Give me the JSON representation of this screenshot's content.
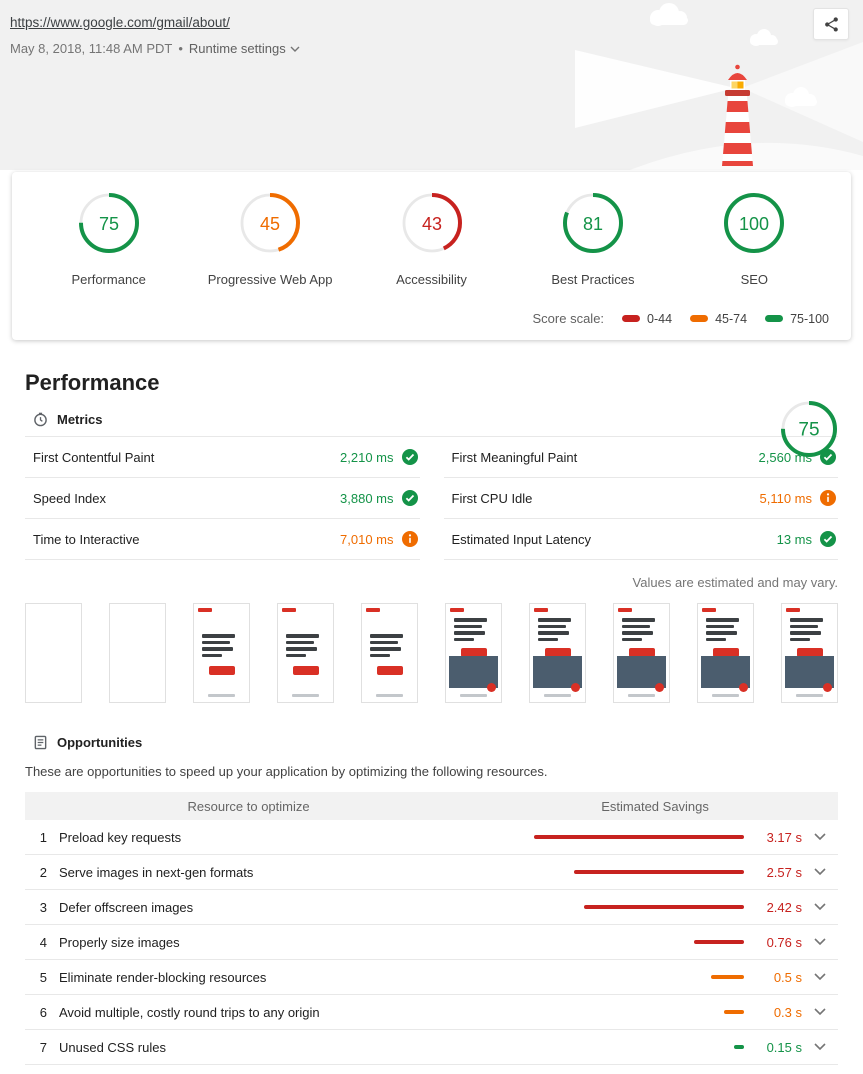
{
  "header": {
    "url": "https://www.google.com/gmail/about/",
    "timestamp": "May 8, 2018, 11:48 AM PDT",
    "separator": "•",
    "runtime_settings_label": "Runtime settings"
  },
  "icons": {
    "share": "share-icon",
    "runtime_chevron": "chevron-down-icon",
    "metrics": "stopwatch-icon",
    "opportunities": "document-icon",
    "pass": "check-circle-icon",
    "average": "info-circle-icon",
    "row_expand": "chevron-down-icon"
  },
  "colors": {
    "green": "#149348",
    "orange": "#ef6c00",
    "red": "#c7221f"
  },
  "scores": [
    {
      "label": "Performance",
      "value": 75,
      "level": "green"
    },
    {
      "label": "Progressive Web App",
      "value": 45,
      "level": "orange"
    },
    {
      "label": "Accessibility",
      "value": 43,
      "level": "red"
    },
    {
      "label": "Best Practices",
      "value": 81,
      "level": "green"
    },
    {
      "label": "SEO",
      "value": 100,
      "level": "green"
    }
  ],
  "score_scale": {
    "label": "Score scale:",
    "ranges": [
      {
        "label": "0-44",
        "level": "red"
      },
      {
        "label": "45-74",
        "level": "orange"
      },
      {
        "label": "75-100",
        "level": "green"
      }
    ]
  },
  "performance": {
    "title": "Performance",
    "score": {
      "value": 75,
      "level": "green"
    },
    "metrics_title": "Metrics",
    "metrics": [
      {
        "label": "First Contentful Paint",
        "value": "2,210 ms",
        "level": "green",
        "icon": "check"
      },
      {
        "label": "First Meaningful Paint",
        "value": "2,560 ms",
        "level": "green",
        "icon": "check"
      },
      {
        "label": "Speed Index",
        "value": "3,880 ms",
        "level": "green",
        "icon": "check"
      },
      {
        "label": "First CPU Idle",
        "value": "5,110 ms",
        "level": "orange",
        "icon": "info"
      },
      {
        "label": "Time to Interactive",
        "value": "7,010 ms",
        "level": "orange",
        "icon": "info"
      },
      {
        "label": "Estimated Input Latency",
        "value": "13 ms",
        "level": "green",
        "icon": "check"
      }
    ],
    "disclaimer": "Values are estimated and may vary.",
    "filmstrip_stages": [
      "blank",
      "blank",
      "text",
      "text",
      "text",
      "image",
      "image",
      "image",
      "image",
      "image"
    ]
  },
  "opportunities": {
    "title": "Opportunities",
    "description": "These are opportunities to speed up your application by optimizing the following resources.",
    "columns": [
      "Resource to optimize",
      "Estimated Savings"
    ],
    "max_savings_s": 3.17,
    "rows": [
      {
        "num": 1,
        "label": "Preload key requests",
        "savings": "3.17 s",
        "seconds": 3.17,
        "level": "red"
      },
      {
        "num": 2,
        "label": "Serve images in next-gen formats",
        "savings": "2.57 s",
        "seconds": 2.57,
        "level": "red"
      },
      {
        "num": 3,
        "label": "Defer offscreen images",
        "savings": "2.42 s",
        "seconds": 2.42,
        "level": "red"
      },
      {
        "num": 4,
        "label": "Properly size images",
        "savings": "0.76 s",
        "seconds": 0.76,
        "level": "red"
      },
      {
        "num": 5,
        "label": "Eliminate render-blocking resources",
        "savings": "0.5 s",
        "seconds": 0.5,
        "level": "orange"
      },
      {
        "num": 6,
        "label": "Avoid multiple, costly round trips to any origin",
        "savings": "0.3 s",
        "seconds": 0.3,
        "level": "orange"
      },
      {
        "num": 7,
        "label": "Unused CSS rules",
        "savings": "0.15 s",
        "seconds": 0.15,
        "level": "green"
      }
    ]
  }
}
